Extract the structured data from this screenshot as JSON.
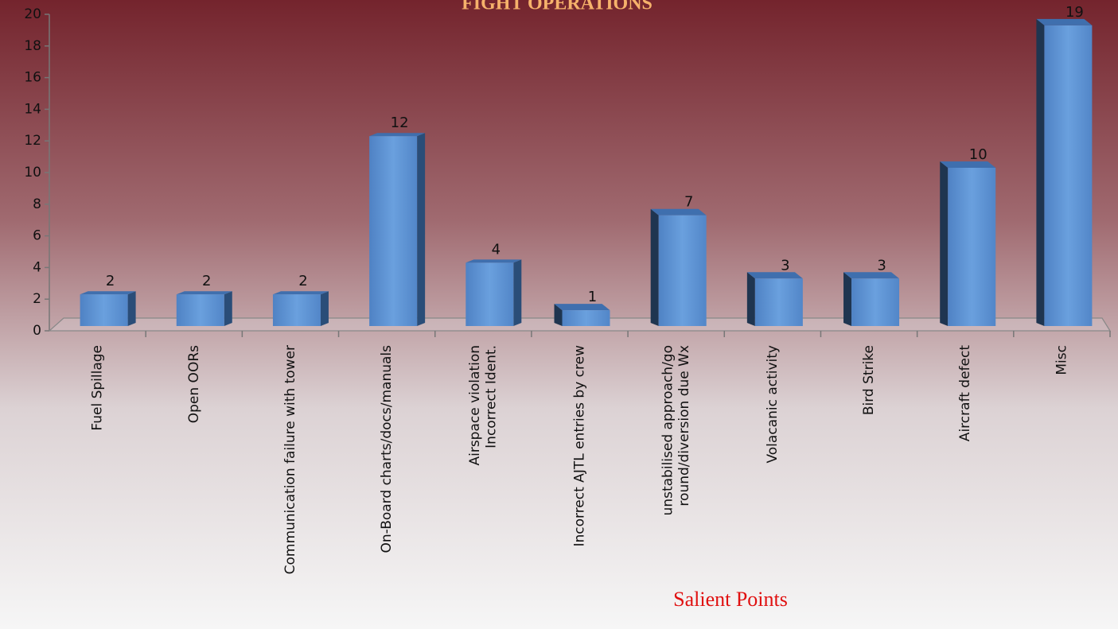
{
  "chart_data": {
    "type": "bar3d",
    "title": "FIGHT OPERATIONS",
    "annotation": "Salient Points",
    "categories": [
      "Fuel Spillage",
      "Open OORs",
      "Communication failure with tower",
      "On-Board charts/docs/manuals",
      "Airspace violation\nIncorrect Ident.",
      "Incorrect AJTL entries by crew",
      "unstabilised approach/go\nround/diversion due Wx",
      "Volacanic activity",
      "Bird Strike",
      "Aircraft defect",
      "Misc"
    ],
    "values": [
      2,
      2,
      2,
      12,
      4,
      1,
      7,
      3,
      3,
      10,
      19
    ],
    "color": "#5b8fd2",
    "ylim": [
      0,
      20
    ],
    "yticks": [
      0,
      2,
      4,
      6,
      8,
      10,
      12,
      14,
      16,
      18,
      20
    ]
  }
}
